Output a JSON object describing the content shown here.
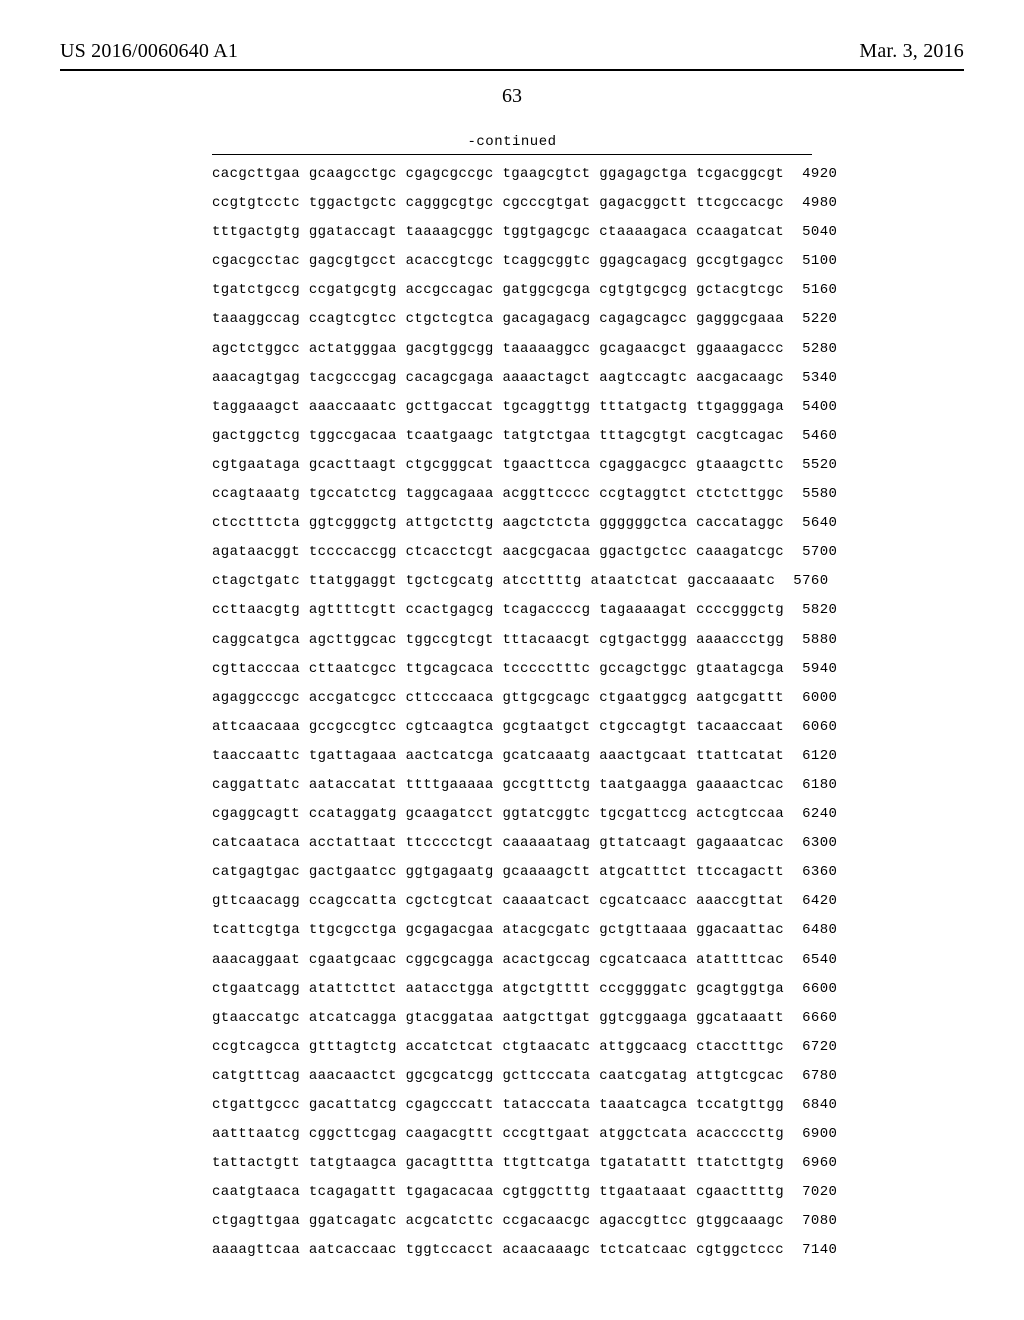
{
  "header": {
    "publication_number": "US 2016/0060640 A1",
    "publication_date": "Mar. 3, 2016"
  },
  "page_number": "63",
  "continued_label": "-continued",
  "sequence": {
    "start": 4920,
    "step": 60,
    "rows": [
      "cacgcttgaa gcaagcctgc cgagcgccgc tgaagcgtct ggagagctga tcgacggcgt",
      "ccgtgtcctc tggactgctc cagggcgtgc cgcccgtgat gagacggctt ttcgccacgc",
      "tttgactgtg ggataccagt taaaagcggc tggtgagcgc ctaaaagaca ccaagatcat",
      "cgacgcctac gagcgtgcct acaccgtcgc tcaggcggtc ggagcagacg gccgtgagcc",
      "tgatctgccg ccgatgcgtg accgccagac gatggcgcga cgtgtgcgcg gctacgtcgc",
      "taaaggccag ccagtcgtcc ctgctcgtca gacagagacg cagagcagcc gagggcgaaa",
      "agctctggcc actatgggaa gacgtggcgg taaaaaggcc gcagaacgct ggaaagaccc",
      "aaacagtgag tacgcccgag cacagcgaga aaaactagct aagtccagtc aacgacaagc",
      "taggaaagct aaaccaaatc gcttgaccat tgcaggttgg tttatgactg ttgagggaga",
      "gactggctcg tggccgacaa tcaatgaagc tatgtctgaa tttagcgtgt cacgtcagac",
      "cgtgaataga gcacttaagt ctgcgggcat tgaacttcca cgaggacgcc gtaaagcttc",
      "ccagtaaatg tgccatctcg taggcagaaa acggttcccc ccgtaggtct ctctcttggc",
      "ctcctttcta ggtcgggctg attgctcttg aagctctcta ggggggctca caccataggc",
      "agataacggt tccccaccgg ctcacctcgt aacgcgacaa ggactgctcc caaagatcgc",
      "ctagctgatc ttatggaggt tgctcgcatg atccttttg ataatctcat gaccaaaatc",
      "ccttaacgtg agttttcgtt ccactgagcg tcagaccccg tagaaaagat ccccgggctg",
      "caggcatgca agcttggcac tggccgtcgt tttacaacgt cgtgactggg aaaaccctgg",
      "cgttacccaa cttaatcgcc ttgcagcaca tccccctttc gccagctggc gtaatagcga",
      "agaggcccgc accgatcgcc cttcccaaca gttgcgcagc ctgaatggcg aatgcgattt",
      "attcaacaaa gccgccgtcc cgtcaagtca gcgtaatgct ctgccagtgt tacaaccaat",
      "taaccaattc tgattagaaa aactcatcga gcatcaaatg aaactgcaat ttattcatat",
      "caggattatc aataccatat ttttgaaaaa gccgtttctg taatgaagga gaaaactcac",
      "cgaggcagtt ccataggatg gcaagatcct ggtatcggtc tgcgattccg actcgtccaa",
      "catcaataca acctattaat ttcccctcgt caaaaataag gttatcaagt gagaaatcac",
      "catgagtgac gactgaatcc ggtgagaatg gcaaaagctt atgcatttct ttccagactt",
      "gttcaacagg ccagccatta cgctcgtcat caaaatcact cgcatcaacc aaaccgttat",
      "tcattcgtga ttgcgcctga gcgagacgaa atacgcgatc gctgttaaaa ggacaattac",
      "aaacaggaat cgaatgcaac cggcgcagga acactgccag cgcatcaaca atattttcac",
      "ctgaatcagg atattcttct aatacctgga atgctgtttt cccggggatc gcagtggtga",
      "gtaaccatgc atcatcagga gtacggataa aatgcttgat ggtcggaaga ggcataaatt",
      "ccgtcagcca gtttagtctg accatctcat ctgtaacatc attggcaacg ctacctttgc",
      "catgtttcag aaacaactct ggcgcatcgg gcttcccata caatcgatag attgtcgcac",
      "ctgattgccc gacattatcg cgagcccatt tatacccata taaatcagca tccatgttgg",
      "aatttaatcg cggcttcgag caagacgttt cccgttgaat atggctcata acaccccttg",
      "tattactgtt tatgtaagca gacagtttta ttgttcatga tgatatattt ttatcttgtg",
      "caatgtaaca tcagagattt tgagacacaa cgtggctttg ttgaataaat cgaacttttg",
      "ctgagttgaa ggatcagatc acgcatcttc ccgacaacgc agaccgttcc gtggcaaagc",
      "aaaagttcaa aatcaccaac tggtccacct acaacaaagc tctcatcaac cgtggctccc"
    ]
  }
}
